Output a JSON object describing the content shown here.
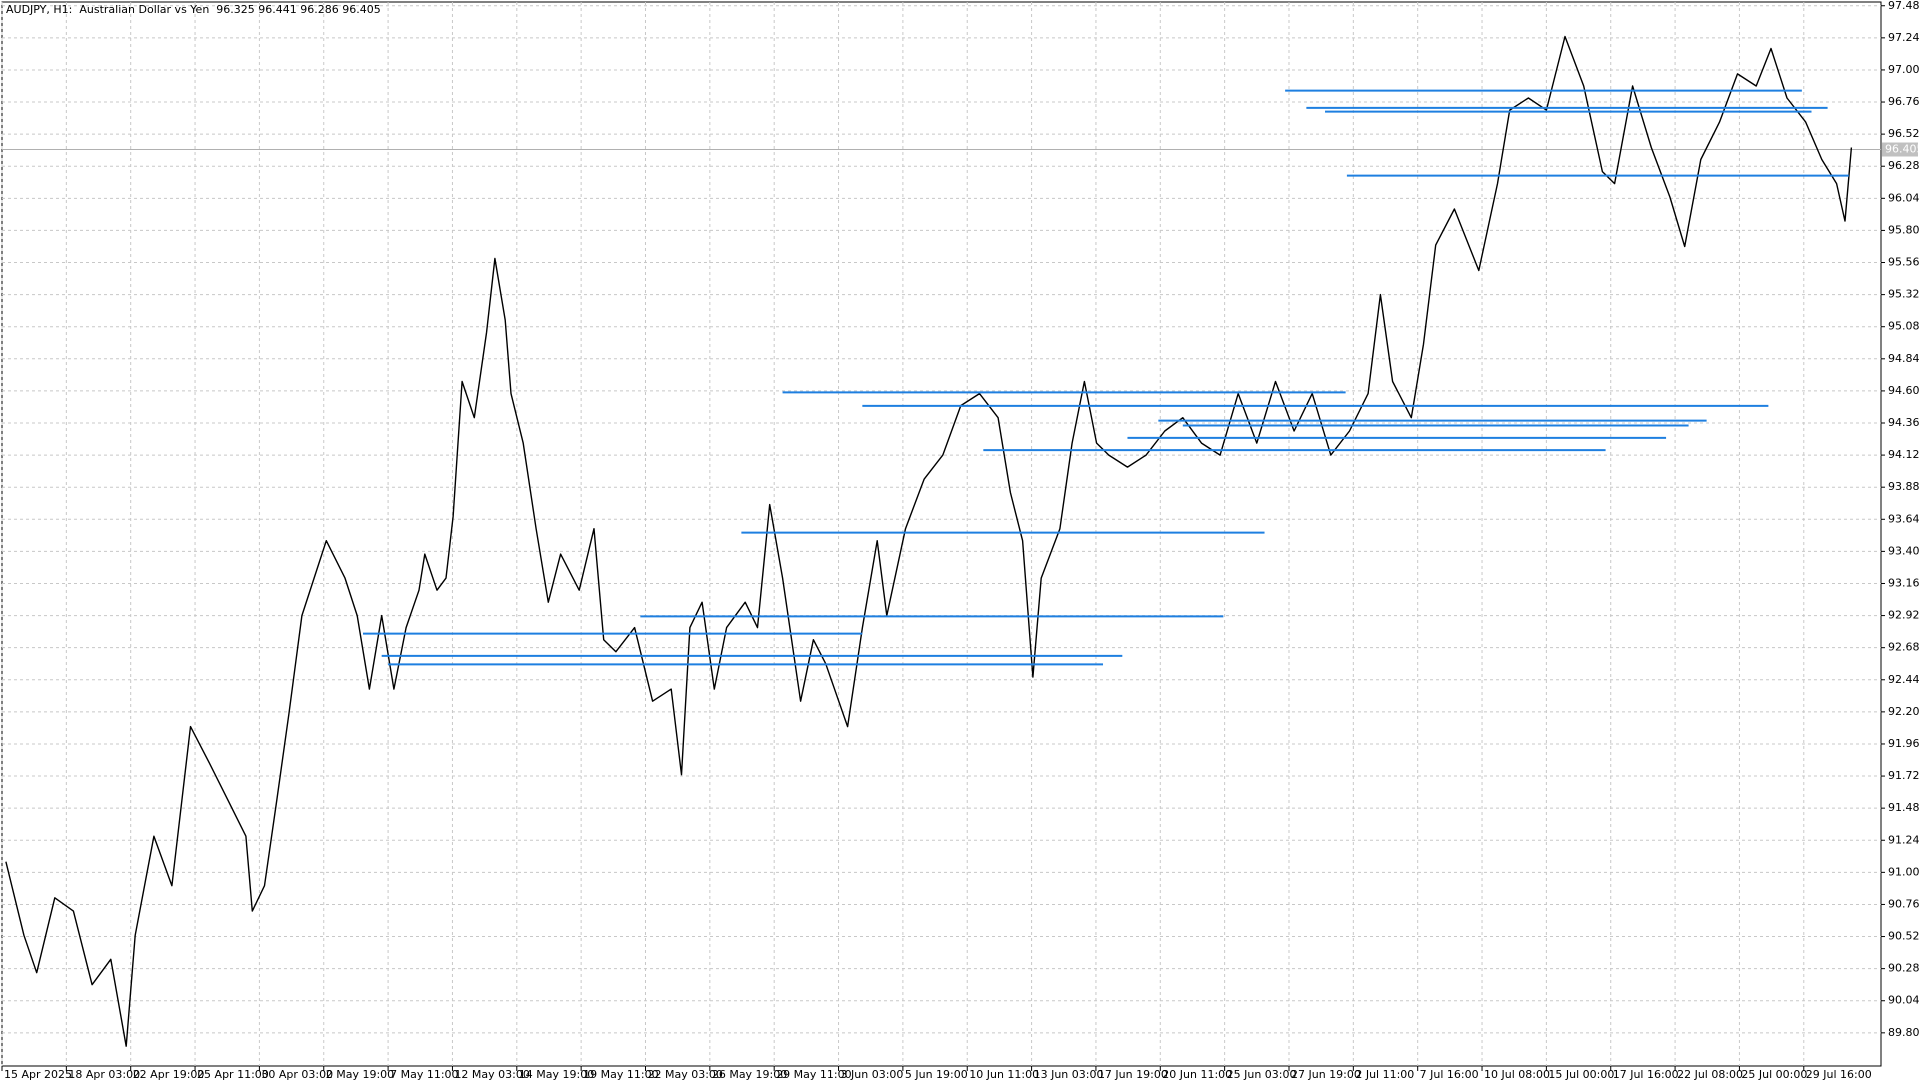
{
  "chart_data": {
    "type": "line",
    "title": "AUDJPY, H1:  Australian Dollar vs Yen  96.325 96.441 96.286 96.405",
    "color": "#000000",
    "x": [
      0.06,
      0.34,
      0.54,
      0.82,
      1.11,
      1.4,
      1.69,
      1.93,
      2.07,
      2.36,
      2.64,
      2.93,
      3.22,
      3.51,
      3.79,
      3.89,
      4.08,
      4.27,
      4.46,
      4.66,
      4.85,
      5.04,
      5.33,
      5.52,
      5.71,
      5.9,
      6.09,
      6.28,
      6.48,
      6.57,
      6.76,
      6.9,
      7.01,
      7.15,
      7.34,
      7.53,
      7.66,
      7.82,
      7.91,
      8.1,
      8.3,
      8.49,
      8.68,
      8.97,
      9.2,
      9.35,
      9.54,
      9.83,
      10.11,
      10.4,
      10.56,
      10.69,
      10.88,
      11.07,
      11.26,
      11.55,
      11.74,
      11.93,
      12.13,
      12.41,
      12.61,
      12.8,
      13.14,
      13.37,
      13.6,
      13.75,
      14.04,
      14.33,
      14.62,
      14.9,
      15.19,
      15.48,
      15.67,
      15.86,
      16.02,
      16.15,
      16.44,
      16.63,
      16.82,
      17.01,
      17.2,
      17.49,
      17.78,
      18.07,
      18.35,
      18.64,
      18.93,
      19.21,
      19.5,
      19.79,
      20.08,
      20.36,
      20.65,
      20.94,
      21.23,
      21.42,
      21.61,
      21.9,
      22.09,
      22.28,
      22.57,
      22.95,
      23.24,
      23.43,
      23.72,
      24.0,
      24.29,
      24.58,
      24.87,
      25.06,
      25.34,
      25.63,
      25.92,
      26.15,
      26.4,
      26.69,
      26.97,
      27.26,
      27.49,
      27.74,
      28.03,
      28.28,
      28.51,
      28.64,
      28.74
    ],
    "values": [
      91.08,
      90.53,
      90.25,
      90.81,
      90.71,
      90.16,
      90.35,
      89.7,
      90.53,
      91.27,
      90.9,
      92.09,
      91.82,
      91.54,
      91.27,
      90.71,
      90.9,
      91.54,
      92.19,
      92.92,
      93.2,
      93.48,
      93.2,
      92.92,
      92.37,
      92.92,
      92.37,
      92.83,
      93.11,
      93.38,
      93.11,
      93.2,
      93.66,
      94.67,
      94.4,
      95.04,
      95.59,
      95.13,
      94.58,
      94.21,
      93.57,
      93.02,
      93.38,
      93.11,
      93.57,
      92.74,
      92.65,
      92.83,
      92.28,
      92.37,
      91.73,
      92.83,
      93.02,
      92.37,
      92.83,
      93.02,
      92.83,
      93.75,
      93.2,
      92.28,
      92.74,
      92.56,
      92.09,
      92.83,
      93.48,
      92.92,
      93.57,
      93.94,
      94.12,
      94.49,
      94.58,
      94.4,
      93.84,
      93.48,
      92.46,
      93.2,
      93.57,
      94.21,
      94.67,
      94.21,
      94.12,
      94.03,
      94.12,
      94.3,
      94.4,
      94.21,
      94.12,
      94.58,
      94.21,
      94.67,
      94.3,
      94.58,
      94.12,
      94.3,
      94.58,
      95.32,
      94.67,
      94.4,
      94.95,
      95.69,
      95.96,
      95.5,
      96.15,
      96.7,
      96.79,
      96.7,
      97.25,
      96.88,
      96.24,
      96.15,
      96.88,
      96.42,
      96.05,
      95.68,
      96.33,
      96.61,
      96.97,
      96.88,
      97.16,
      96.79,
      96.61,
      96.33,
      96.15,
      95.87,
      96.42
    ],
    "levels_color": "#1e7fe0",
    "levels": [
      {
        "value": 96.845,
        "x": [
          19.94,
          27.97
        ]
      },
      {
        "value": 96.716,
        "x": [
          20.27,
          28.37
        ]
      },
      {
        "value": 96.688,
        "x": [
          20.56,
          28.12
        ]
      },
      {
        "value": 96.21,
        "x": [
          20.9,
          28.7
        ]
      },
      {
        "value": 94.589,
        "x": [
          12.13,
          20.88
        ]
      },
      {
        "value": 94.488,
        "x": [
          13.37,
          27.45
        ]
      },
      {
        "value": 94.378,
        "x": [
          17.97,
          26.49
        ]
      },
      {
        "value": 94.341,
        "x": [
          18.35,
          26.21
        ]
      },
      {
        "value": 94.249,
        "x": [
          17.49,
          25.86
        ]
      },
      {
        "value": 94.157,
        "x": [
          15.25,
          24.92
        ]
      },
      {
        "value": 93.54,
        "x": [
          11.49,
          19.62
        ]
      },
      {
        "value": 92.914,
        "x": [
          9.92,
          18.98
        ]
      },
      {
        "value": 92.785,
        "x": [
          5.61,
          13.37
        ]
      },
      {
        "value": 92.619,
        "x": [
          5.9,
          17.41
        ]
      },
      {
        "value": 92.555,
        "x": [
          6.0,
          17.11
        ]
      }
    ],
    "bid": 96.405,
    "xlim": [
      0,
      29.2
    ],
    "ylim": [
      89.552,
      97.508
    ],
    "grid": true,
    "xticks": [
      {
        "value": 0,
        "label": "15 Apr 2025"
      },
      {
        "value": 1,
        "label": "18 Apr 03:00"
      },
      {
        "value": 2,
        "label": "22 Apr 19:00"
      },
      {
        "value": 3,
        "label": "25 Apr 11:00"
      },
      {
        "value": 4,
        "label": "30 Apr 03:00"
      },
      {
        "value": 5,
        "label": "2 May 19:00"
      },
      {
        "value": 6,
        "label": "7 May 11:00"
      },
      {
        "value": 7,
        "label": "12 May 03:00"
      },
      {
        "value": 8,
        "label": "14 May 19:00"
      },
      {
        "value": 9,
        "label": "19 May 11:00"
      },
      {
        "value": 10,
        "label": "22 May 03:00"
      },
      {
        "value": 11,
        "label": "26 May 19:00"
      },
      {
        "value": 12,
        "label": "29 May 11:00"
      },
      {
        "value": 13,
        "label": "3 Jun 03:00"
      },
      {
        "value": 14,
        "label": "5 Jun 19:00"
      },
      {
        "value": 15,
        "label": "10 Jun 11:00"
      },
      {
        "value": 16,
        "label": "13 Jun 03:00"
      },
      {
        "value": 17,
        "label": "17 Jun 19:00"
      },
      {
        "value": 18,
        "label": "20 Jun 11:00"
      },
      {
        "value": 19,
        "label": "25 Jun 03:00"
      },
      {
        "value": 20,
        "label": "27 Jun 19:00"
      },
      {
        "value": 21,
        "label": "2 Jul 11:00"
      },
      {
        "value": 22,
        "label": "7 Jul 16:00"
      },
      {
        "value": 23,
        "label": "10 Jul 08:00"
      },
      {
        "value": 24,
        "label": "15 Jul 00:00"
      },
      {
        "value": 25,
        "label": "17 Jul 16:00"
      },
      {
        "value": 26,
        "label": "22 Jul 08:00"
      },
      {
        "value": 27,
        "label": "25 Jul 00:00"
      },
      {
        "value": 28,
        "label": "29 Jul 16:00"
      }
    ],
    "yticks": [
      {
        "value": 97.48,
        "label": "97.480"
      },
      {
        "value": 97.24,
        "label": "97.240"
      },
      97,
      {
        "value": 97.0,
        "label": "97.000"
      },
      {
        "value": 96.76,
        "label": "96.760"
      },
      {
        "value": 96.52,
        "label": "96.520"
      },
      {
        "value": 96.28,
        "label": "96.280"
      },
      {
        "value": 96.04,
        "label": "96.040"
      },
      {
        "value": 95.8,
        "label": "95.800"
      },
      {
        "value": 95.56,
        "label": "95.560"
      },
      {
        "value": 95.32,
        "label": "95.320"
      },
      {
        "value": 95.08,
        "label": "95.080"
      },
      {
        "value": 94.84,
        "label": "94.840"
      },
      {
        "value": 94.6,
        "label": "94.600"
      },
      {
        "value": 94.36,
        "label": "94.360"
      },
      {
        "value": 94.12,
        "label": "94.120"
      },
      {
        "value": 93.88,
        "label": "93.880"
      },
      {
        "value": 93.64,
        "label": "93.640"
      },
      {
        "value": 93.4,
        "label": "93.400"
      },
      {
        "value": 93.16,
        "label": "93.160"
      },
      {
        "value": 92.92,
        "label": "92.920"
      },
      {
        "value": 92.68,
        "label": "92.680"
      },
      {
        "value": 92.44,
        "label": "92.440"
      },
      {
        "value": 92.2,
        "label": "92.200"
      },
      {
        "value": 91.96,
        "label": "91.960"
      },
      {
        "value": 91.72,
        "label": "91.720"
      },
      {
        "value": 91.48,
        "label": "91.480"
      },
      {
        "value": 91.24,
        "label": "91.240"
      },
      {
        "value": 91.0,
        "label": "91.000"
      },
      {
        "value": 90.76,
        "label": "90.760"
      },
      {
        "value": 90.52,
        "label": "90.520"
      },
      {
        "value": 90.28,
        "label": "90.280"
      },
      {
        "value": 90.04,
        "label": "90.040"
      },
      {
        "value": 89.8,
        "label": "89.800"
      }
    ]
  }
}
